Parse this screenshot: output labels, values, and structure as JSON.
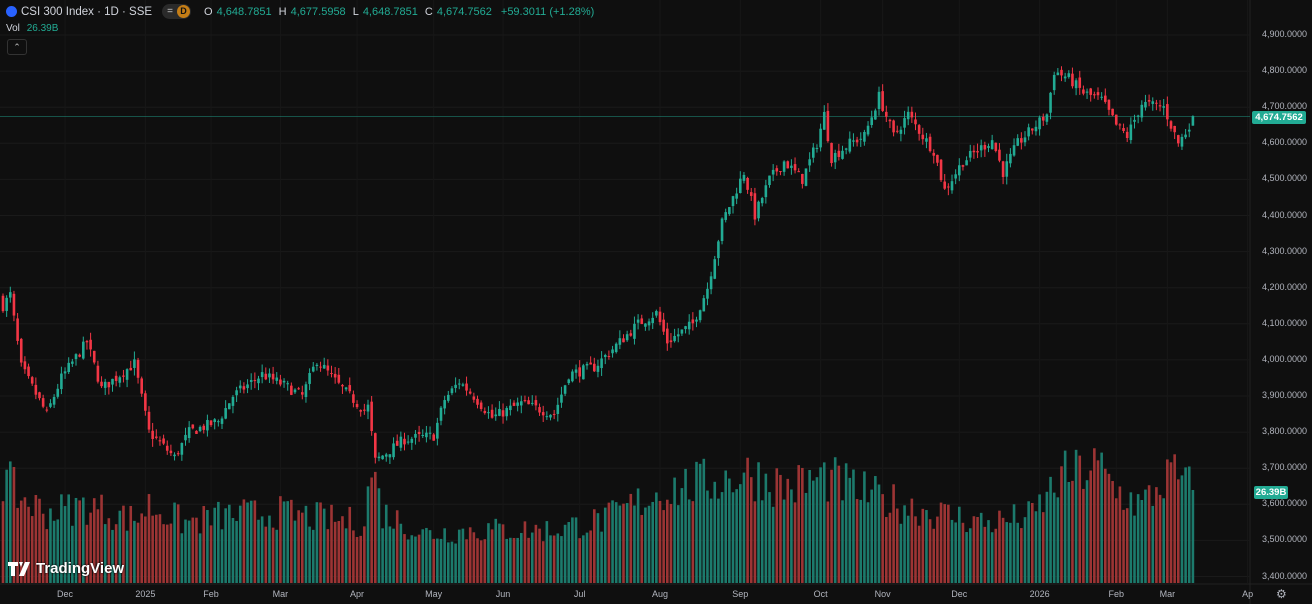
{
  "legend": {
    "symbol": "CSI 300 Index · 1D · SSE",
    "badge": "D",
    "open_label": "O",
    "open": "4,648.7851",
    "high_label": "H",
    "high": "4,677.5958",
    "low_label": "L",
    "low": "4,648.7851",
    "close_label": "C",
    "close": "4,674.7562",
    "change": "+59.3011 (+1.28%)",
    "vol_label": "Vol",
    "vol": "26.39B"
  },
  "logo_text": "TradingView",
  "current_price_tag": "4,674.7562",
  "current_volume_tag": "26.39B",
  "colors": {
    "up": "#22ab94",
    "down": "#f23645",
    "vol_up": "#1c7a6c",
    "vol_down": "#9c3434",
    "background": "#0f0f0f"
  },
  "chart_data": {
    "type": "candlestick",
    "title": "CSI 300 Index · 1D · SSE",
    "y_ticks": [
      "4,900.0000",
      "4,800.0000",
      "4,700.0000",
      "4,600.0000",
      "4,500.0000",
      "4,400.0000",
      "4,300.0000",
      "4,200.0000",
      "4,100.0000",
      "4,000.0000",
      "3,900.0000",
      "3,800.0000",
      "3,700.0000",
      "3,600.0000",
      "3,500.0000",
      "3,400.0000"
    ],
    "y_tick_values": [
      4900,
      4800,
      4700,
      4600,
      4500,
      4400,
      4300,
      4200,
      4100,
      4000,
      3900,
      3800,
      3700,
      3600,
      3500,
      3400
    ],
    "x_ticks": [
      {
        "label": "Dec",
        "bar": 17
      },
      {
        "label": "2025",
        "bar": 39
      },
      {
        "label": "Feb",
        "bar": 57
      },
      {
        "label": "Mar",
        "bar": 76
      },
      {
        "label": "Apr",
        "bar": 97
      },
      {
        "label": "May",
        "bar": 118
      },
      {
        "label": "Jun",
        "bar": 137
      },
      {
        "label": "Jul",
        "bar": 158
      },
      {
        "label": "Aug",
        "bar": 180
      },
      {
        "label": "Sep",
        "bar": 202
      },
      {
        "label": "Oct",
        "bar": 224
      },
      {
        "label": "Nov",
        "bar": 241
      },
      {
        "label": "Dec",
        "bar": 262
      },
      {
        "label": "2026",
        "bar": 284
      },
      {
        "label": "Feb",
        "bar": 305
      },
      {
        "label": "Mar",
        "bar": 319
      },
      {
        "label": "Ap",
        "bar": 341
      }
    ],
    "close_anchors": [
      [
        0,
        4150
      ],
      [
        2,
        4180
      ],
      [
        5,
        3980
      ],
      [
        12,
        3850
      ],
      [
        16,
        3950
      ],
      [
        23,
        4050
      ],
      [
        27,
        3920
      ],
      [
        36,
        3990
      ],
      [
        40,
        3800
      ],
      [
        47,
        3730
      ],
      [
        51,
        3800
      ],
      [
        59,
        3830
      ],
      [
        63,
        3900
      ],
      [
        71,
        3960
      ],
      [
        77,
        3930
      ],
      [
        82,
        3900
      ],
      [
        86,
        4000
      ],
      [
        92,
        3930
      ],
      [
        99,
        3860
      ],
      [
        100,
        3870
      ],
      [
        102,
        3720
      ],
      [
        110,
        3780
      ],
      [
        118,
        3790
      ],
      [
        121,
        3890
      ],
      [
        125,
        3940
      ],
      [
        129,
        3900
      ],
      [
        134,
        3840
      ],
      [
        142,
        3880
      ],
      [
        151,
        3850
      ],
      [
        155,
        3960
      ],
      [
        162,
        3980
      ],
      [
        167,
        4030
      ],
      [
        174,
        4100
      ],
      [
        179,
        4130
      ],
      [
        182,
        4050
      ],
      [
        189,
        4100
      ],
      [
        193,
        4200
      ],
      [
        197,
        4380
      ],
      [
        203,
        4520
      ],
      [
        206,
        4400
      ],
      [
        210,
        4500
      ],
      [
        214,
        4550
      ],
      [
        219,
        4500
      ],
      [
        223,
        4600
      ],
      [
        225,
        4680
      ],
      [
        227,
        4560
      ],
      [
        232,
        4600
      ],
      [
        236,
        4620
      ],
      [
        240,
        4730
      ],
      [
        244,
        4620
      ],
      [
        248,
        4680
      ],
      [
        252,
        4620
      ],
      [
        255,
        4580
      ],
      [
        258,
        4470
      ],
      [
        263,
        4550
      ],
      [
        267,
        4580
      ],
      [
        271,
        4610
      ],
      [
        274,
        4520
      ],
      [
        278,
        4600
      ],
      [
        282,
        4640
      ],
      [
        286,
        4680
      ],
      [
        288,
        4800
      ],
      [
        292,
        4780
      ],
      [
        296,
        4740
      ],
      [
        301,
        4720
      ],
      [
        305,
        4650
      ],
      [
        308,
        4620
      ],
      [
        312,
        4710
      ],
      [
        318,
        4700
      ],
      [
        322,
        4600
      ],
      [
        324,
        4630
      ],
      [
        326,
        4675
      ]
    ],
    "volume_anchors_billions": [
      [
        0,
        30
      ],
      [
        5,
        24
      ],
      [
        12,
        20
      ],
      [
        23,
        22
      ],
      [
        36,
        18
      ],
      [
        40,
        22
      ],
      [
        50,
        17
      ],
      [
        60,
        19
      ],
      [
        75,
        20
      ],
      [
        90,
        18
      ],
      [
        99,
        17
      ],
      [
        101,
        33
      ],
      [
        104,
        20
      ],
      [
        115,
        14
      ],
      [
        130,
        15
      ],
      [
        150,
        15
      ],
      [
        165,
        18
      ],
      [
        180,
        26
      ],
      [
        195,
        29
      ],
      [
        205,
        31
      ],
      [
        215,
        27
      ],
      [
        225,
        30
      ],
      [
        240,
        24
      ],
      [
        255,
        20
      ],
      [
        270,
        17
      ],
      [
        282,
        19
      ],
      [
        290,
        30
      ],
      [
        300,
        33
      ],
      [
        305,
        26
      ],
      [
        312,
        22
      ],
      [
        320,
        31
      ],
      [
        326,
        26.39
      ]
    ],
    "last": {
      "open": 4648.7851,
      "high": 4677.5958,
      "low": 4648.7851,
      "close": 4674.7562,
      "volume_billions": 26.39
    },
    "ylim": [
      3400,
      4900
    ]
  }
}
